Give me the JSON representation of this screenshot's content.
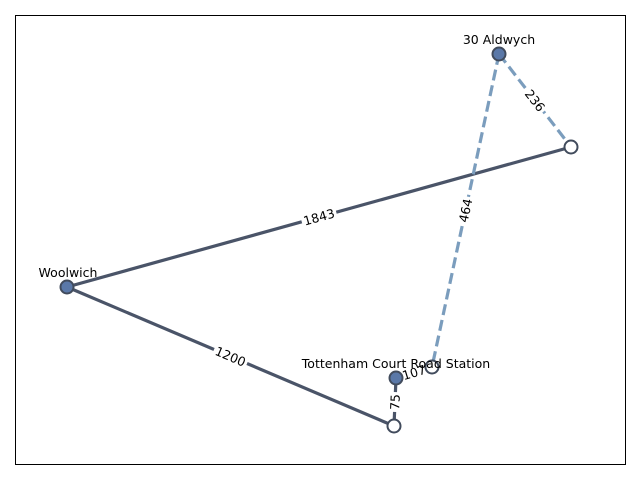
{
  "colors": {
    "solid_edge": "#4a5468",
    "dashed_edge": "#7b9dbd",
    "node_fill_filled": "#5a78a8",
    "node_fill_hollow": "#ffffff",
    "node_stroke": "#414b5c",
    "frame": "#000000"
  },
  "nodes": [
    {
      "id": "n_aldwych",
      "label": "30 Aldwych",
      "filled": true
    },
    {
      "id": "n_right",
      "label": "",
      "filled": false
    },
    {
      "id": "n_woolwich",
      "label": "Woolwich",
      "filled": true
    },
    {
      "id": "n_tcr",
      "label": "Tottenham Court Road Station",
      "filled": true
    },
    {
      "id": "n_tcr_hollow",
      "label": "",
      "filled": false
    },
    {
      "id": "n_bottom",
      "label": "",
      "filled": false
    }
  ],
  "edges": [
    {
      "from": "n_woolwich",
      "to": "n_right",
      "weight": "1843",
      "style": "solid"
    },
    {
      "from": "n_woolwich",
      "to": "n_bottom",
      "weight": "1200",
      "style": "solid"
    },
    {
      "from": "n_tcr",
      "to": "n_bottom",
      "weight": "75",
      "style": "solid"
    },
    {
      "from": "n_tcr",
      "to": "n_tcr_hollow",
      "weight": "107",
      "style": "solid"
    },
    {
      "from": "n_aldwych",
      "to": "n_tcr_hollow",
      "weight": "464",
      "style": "dashed"
    },
    {
      "from": "n_aldwych",
      "to": "n_right",
      "weight": "236",
      "style": "dashed"
    }
  ]
}
